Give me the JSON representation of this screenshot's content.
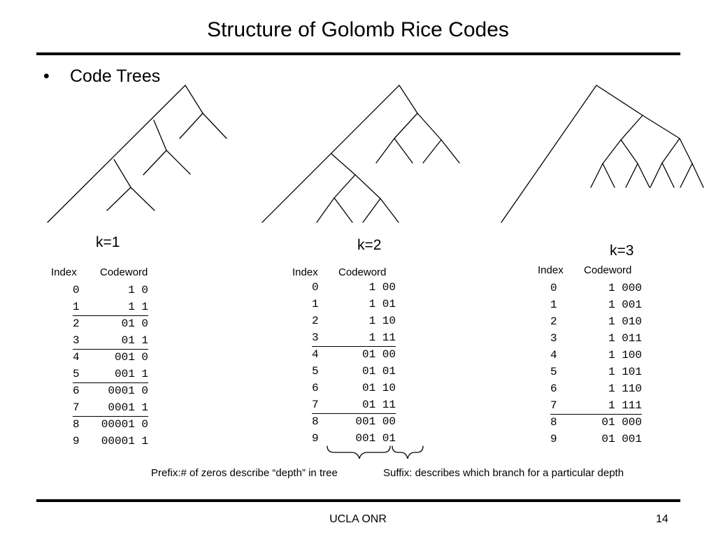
{
  "slide": {
    "title": "Structure of Golomb Rice Codes",
    "bullet": "Code Trees"
  },
  "tables": [
    {
      "k_label": "k=1",
      "header_index": "Index",
      "header_codeword": "Codeword",
      "rows": [
        {
          "index": "0",
          "codeword": "1 0",
          "separator": false
        },
        {
          "index": "1",
          "codeword": "1 1",
          "separator": true
        },
        {
          "index": "2",
          "codeword": "01 0",
          "separator": false
        },
        {
          "index": "3",
          "codeword": "01 1",
          "separator": true
        },
        {
          "index": "4",
          "codeword": "001 0",
          "separator": false
        },
        {
          "index": "5",
          "codeword": "001 1",
          "separator": true
        },
        {
          "index": "6",
          "codeword": "0001 0",
          "separator": false
        },
        {
          "index": "7",
          "codeword": "0001 1",
          "separator": true
        },
        {
          "index": "8",
          "codeword": "00001 0",
          "separator": false
        },
        {
          "index": "9",
          "codeword": "00001 1",
          "separator": false
        }
      ]
    },
    {
      "k_label": "k=2",
      "header_index": "Index",
      "header_codeword": "Codeword",
      "rows": [
        {
          "index": "0",
          "codeword": "1 00",
          "separator": false
        },
        {
          "index": "1",
          "codeword": "1 01",
          "separator": false
        },
        {
          "index": "2",
          "codeword": "1 10",
          "separator": false
        },
        {
          "index": "3",
          "codeword": "1 11",
          "separator": true
        },
        {
          "index": "4",
          "codeword": "01 00",
          "separator": false
        },
        {
          "index": "5",
          "codeword": "01 01",
          "separator": false
        },
        {
          "index": "6",
          "codeword": "01 10",
          "separator": false
        },
        {
          "index": "7",
          "codeword": "01 11",
          "separator": true
        },
        {
          "index": "8",
          "codeword": "001 00",
          "separator": false
        },
        {
          "index": "9",
          "codeword": "001 01",
          "separator": false
        }
      ]
    },
    {
      "k_label": "k=3",
      "header_index": "Index",
      "header_codeword": "Codeword",
      "rows": [
        {
          "index": "0",
          "codeword": "1 000",
          "separator": false
        },
        {
          "index": "1",
          "codeword": "1 001",
          "separator": false
        },
        {
          "index": "2",
          "codeword": "1 010",
          "separator": false
        },
        {
          "index": "3",
          "codeword": "1 011",
          "separator": false
        },
        {
          "index": "4",
          "codeword": "1 100",
          "separator": false
        },
        {
          "index": "5",
          "codeword": "1 101",
          "separator": false
        },
        {
          "index": "6",
          "codeword": "1 110",
          "separator": false
        },
        {
          "index": "7",
          "codeword": "1 111",
          "separator": true
        },
        {
          "index": "8",
          "codeword": "01 000",
          "separator": false
        },
        {
          "index": "9",
          "codeword": "01 001",
          "separator": false
        }
      ]
    }
  ],
  "notes": {
    "prefix": "Prefix:# of zeros describe “depth” in tree",
    "suffix": "Suffix: describes which branch for a particular depth"
  },
  "footer": {
    "org": "UCLA ONR",
    "page_number": "14"
  }
}
